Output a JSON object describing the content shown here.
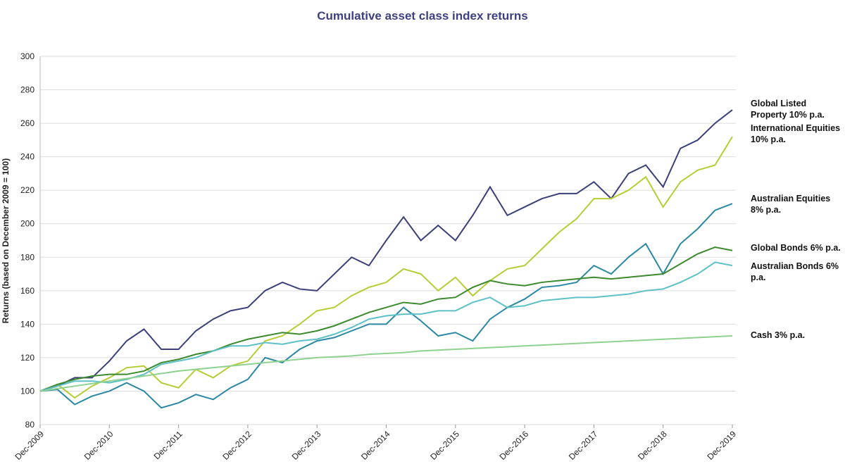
{
  "chart_data": {
    "type": "line",
    "title": "Cumulative asset class index returns",
    "y_label": "Returns (based on December 2009 = 100)",
    "categories": [
      "Dec-2009",
      null,
      null,
      null,
      "Dec-2010",
      null,
      null,
      null,
      "Dec-2011",
      null,
      null,
      null,
      "Dec-2012",
      null,
      null,
      null,
      "Dec-2013",
      null,
      null,
      null,
      "Dec-2014",
      null,
      null,
      null,
      "Dec-2015",
      null,
      null,
      null,
      "Dec-2016",
      null,
      null,
      null,
      "Dec-2017",
      null,
      null,
      null,
      "Dec-2018",
      null,
      null,
      null,
      "Dec-2019"
    ],
    "ylim": [
      80,
      300
    ],
    "yticks": [
      80,
      100,
      120,
      140,
      160,
      180,
      200,
      220,
      240,
      260,
      280,
      300
    ],
    "grid": true,
    "series": [
      {
        "name": "Global Listed Property 10% p.a.",
        "color": "#3b3f7a",
        "values": [
          100,
          103,
          108,
          108,
          118,
          130,
          137,
          125,
          125,
          136,
          143,
          148,
          150,
          160,
          165,
          161,
          160,
          170,
          180,
          175,
          190,
          204,
          190,
          199,
          190,
          205,
          222,
          205,
          210,
          215,
          218,
          218,
          225,
          215,
          230,
          235,
          222,
          245,
          250,
          260,
          268
        ]
      },
      {
        "name": "International Equities 10% p.a.",
        "color": "#b8cc36",
        "values": [
          100,
          104,
          96,
          103,
          108,
          114,
          115,
          105,
          102,
          113,
          108,
          115,
          118,
          130,
          133,
          140,
          148,
          150,
          157,
          162,
          165,
          173,
          170,
          160,
          168,
          157,
          166,
          173,
          175,
          185,
          195,
          203,
          215,
          215,
          220,
          228,
          210,
          225,
          232,
          235,
          252
        ]
      },
      {
        "name": "Australian Equities 8% p.a.",
        "color": "#2a88a4",
        "values": [
          100,
          101,
          92,
          97,
          100,
          105,
          100,
          90,
          93,
          98,
          95,
          102,
          107,
          120,
          117,
          125,
          130,
          132,
          136,
          140,
          140,
          150,
          142,
          133,
          135,
          130,
          143,
          150,
          155,
          162,
          163,
          165,
          175,
          170,
          180,
          188,
          170,
          188,
          197,
          208,
          212
        ]
      },
      {
        "name": "Global Bonds 6% p.a.",
        "color": "#3c8a2e",
        "values": [
          100,
          104,
          107,
          109,
          110,
          110,
          112,
          117,
          119,
          122,
          124,
          128,
          131,
          133,
          135,
          134,
          136,
          139,
          143,
          147,
          150,
          153,
          152,
          155,
          156,
          162,
          166,
          164,
          163,
          165,
          166,
          167,
          168,
          167,
          168,
          169,
          170,
          176,
          182,
          186,
          184
        ]
      },
      {
        "name": "Australian Bonds 6% p.a.",
        "color": "#5cc0c6",
        "values": [
          100,
          103,
          106,
          106,
          105,
          107,
          110,
          116,
          118,
          120,
          124,
          127,
          127,
          129,
          128,
          130,
          131,
          134,
          138,
          143,
          145,
          146,
          146,
          148,
          148,
          153,
          156,
          150,
          151,
          154,
          155,
          156,
          156,
          157,
          158,
          160,
          161,
          165,
          170,
          177,
          175
        ]
      },
      {
        "name": "Cash 3% p.a.",
        "color": "#8fd18f",
        "values": [
          100,
          101.5,
          103,
          104.5,
          106,
          107.5,
          109,
          110.5,
          112,
          113,
          114,
          115,
          116,
          117,
          118,
          119,
          120,
          120.5,
          121,
          122,
          122.5,
          123,
          124,
          124.5,
          125,
          125.5,
          126,
          126.5,
          127,
          127.5,
          128,
          128.5,
          129,
          129.5,
          130,
          130.5,
          131,
          131.5,
          132,
          132.5,
          133
        ]
      }
    ]
  }
}
